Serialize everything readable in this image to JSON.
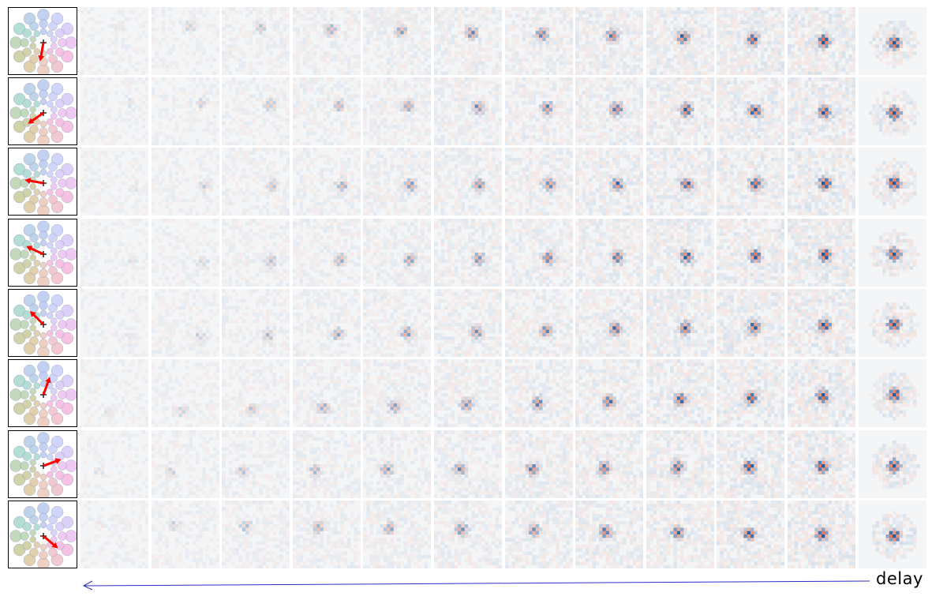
{
  "figure": {
    "axis_label": "delay",
    "colormap": {
      "negative": "#1c5fa8",
      "neutral": "#f4f5f6",
      "positive": "#e8704f"
    },
    "arrow_color": "#ff0000",
    "axis_arrow_color": "#2b2bcc",
    "rows": [
      {
        "direction_deg": 260,
        "frames": 12
      },
      {
        "direction_deg": 215,
        "frames": 12
      },
      {
        "direction_deg": 170,
        "frames": 12
      },
      {
        "direction_deg": 155,
        "frames": 12
      },
      {
        "direction_deg": 135,
        "frames": 12
      },
      {
        "direction_deg": 70,
        "frames": 12
      },
      {
        "direction_deg": 20,
        "frames": 12
      },
      {
        "direction_deg": 320,
        "frames": 12
      }
    ]
  }
}
